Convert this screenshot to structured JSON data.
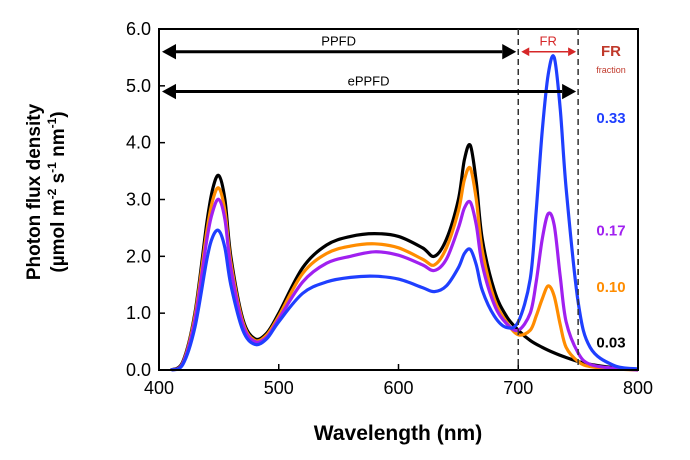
{
  "chart_data": {
    "type": "line",
    "xlabel": "Wavelength (nm)",
    "ylabel_line1": "Photon flux density",
    "ylabel_line2_parts": [
      "(µmol m",
      "-2",
      " s",
      "-1",
      " nm",
      "-1",
      ")"
    ],
    "xlim": [
      400,
      800
    ],
    "ylim": [
      0,
      6
    ],
    "x_ticks": [
      "400",
      "500",
      "600",
      "700",
      "800"
    ],
    "y_ticks": [
      "0.0",
      "1.0",
      "2.0",
      "3.0",
      "4.0",
      "5.0",
      "6.0"
    ],
    "grid": false,
    "annotations": {
      "ppfd": {
        "label": "PPFD",
        "range_nm": [
          400,
          700
        ],
        "y": 5.6
      },
      "eppfd": {
        "label": "ePPFD",
        "range_nm": [
          400,
          750
        ],
        "y": 4.9
      },
      "fr": {
        "label": "FR",
        "range_nm": [
          700,
          750
        ],
        "y": 5.6,
        "color": "#d62728"
      },
      "fr_fraction_header": {
        "line1": "FR",
        "line2": "fraction",
        "color": "#c0392b"
      },
      "dashed_lines_nm": [
        700,
        750
      ]
    },
    "series": [
      {
        "label": "0.03",
        "color": "#000000",
        "x": [
          410,
          420,
          430,
          440,
          445,
          450,
          455,
          460,
          470,
          480,
          490,
          500,
          520,
          540,
          560,
          580,
          600,
          620,
          630,
          640,
          650,
          655,
          660,
          665,
          670,
          680,
          690,
          700,
          710,
          720,
          730,
          740,
          750,
          760,
          780,
          800
        ],
        "y": [
          0.0,
          0.15,
          1.0,
          2.6,
          3.2,
          3.42,
          3.0,
          2.0,
          0.9,
          0.55,
          0.65,
          1.0,
          1.8,
          2.2,
          2.35,
          2.4,
          2.35,
          2.15,
          2.0,
          2.3,
          3.0,
          3.7,
          3.95,
          3.3,
          2.3,
          1.4,
          0.95,
          0.7,
          0.52,
          0.4,
          0.3,
          0.22,
          0.15,
          0.1,
          0.04,
          0.01
        ]
      },
      {
        "label": "0.10",
        "color": "#ff8c00",
        "x": [
          410,
          420,
          430,
          440,
          445,
          450,
          455,
          460,
          470,
          480,
          490,
          500,
          520,
          540,
          560,
          580,
          600,
          620,
          630,
          640,
          650,
          655,
          660,
          665,
          670,
          680,
          690,
          700,
          710,
          715,
          720,
          725,
          730,
          735,
          740,
          750,
          760,
          780,
          800
        ],
        "y": [
          0.0,
          0.13,
          0.95,
          2.45,
          3.0,
          3.2,
          2.8,
          1.9,
          0.85,
          0.52,
          0.62,
          0.95,
          1.7,
          2.05,
          2.18,
          2.22,
          2.15,
          1.95,
          1.85,
          2.15,
          2.8,
          3.35,
          3.55,
          3.0,
          2.1,
          1.25,
          0.85,
          0.62,
          0.7,
          0.95,
          1.25,
          1.48,
          1.3,
          0.8,
          0.4,
          0.15,
          0.06,
          0.02,
          0.0
        ]
      },
      {
        "label": "0.17",
        "color": "#a020f0",
        "x": [
          410,
          420,
          430,
          440,
          445,
          450,
          455,
          460,
          470,
          480,
          490,
          500,
          520,
          540,
          560,
          580,
          600,
          620,
          630,
          640,
          650,
          655,
          660,
          665,
          670,
          680,
          690,
          700,
          710,
          715,
          720,
          725,
          730,
          735,
          740,
          750,
          760,
          780,
          800
        ],
        "y": [
          0.0,
          0.12,
          0.88,
          2.3,
          2.8,
          3.0,
          2.65,
          1.8,
          0.8,
          0.5,
          0.58,
          0.9,
          1.55,
          1.88,
          2.0,
          2.08,
          2.02,
          1.85,
          1.75,
          1.95,
          2.5,
          2.85,
          2.95,
          2.55,
          1.85,
          1.15,
          0.82,
          0.7,
          1.0,
          1.55,
          2.3,
          2.75,
          2.55,
          1.65,
          0.85,
          0.3,
          0.1,
          0.03,
          0.0
        ]
      },
      {
        "label": "0.33",
        "color": "#1f3fff",
        "x": [
          410,
          420,
          430,
          440,
          445,
          450,
          455,
          460,
          470,
          480,
          490,
          500,
          520,
          540,
          560,
          580,
          600,
          620,
          630,
          640,
          650,
          655,
          660,
          665,
          670,
          680,
          690,
          700,
          710,
          715,
          720,
          725,
          730,
          735,
          740,
          750,
          760,
          780,
          800
        ],
        "y": [
          0.0,
          0.1,
          0.75,
          1.95,
          2.35,
          2.45,
          2.15,
          1.5,
          0.7,
          0.45,
          0.55,
          0.85,
          1.35,
          1.55,
          1.63,
          1.65,
          1.6,
          1.45,
          1.38,
          1.48,
          1.8,
          2.05,
          2.12,
          1.85,
          1.4,
          0.95,
          0.75,
          0.85,
          1.6,
          2.8,
          4.2,
          5.2,
          5.5,
          4.6,
          3.2,
          1.2,
          0.4,
          0.08,
          0.02
        ]
      }
    ]
  }
}
